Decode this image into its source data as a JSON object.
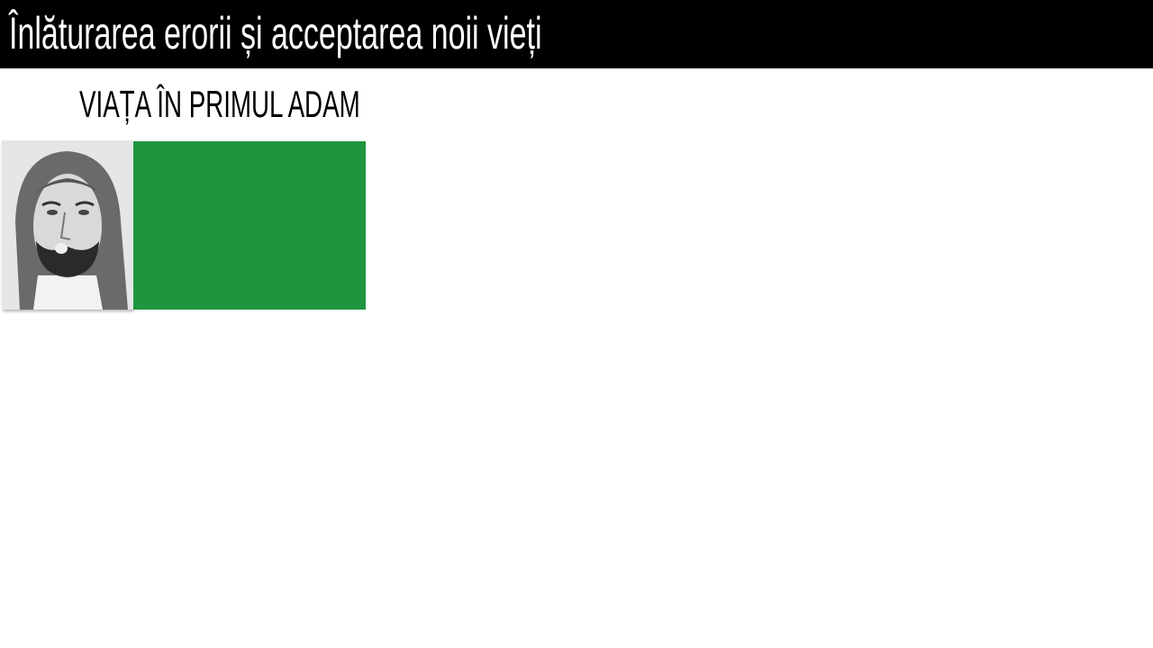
{
  "slide": {
    "title": "Înlăturarea erorii și acceptarea noii vieți",
    "subtitle": "VIAȚA ÎN PRIMUL ADAM",
    "portrait_icon": "watercolor-portrait",
    "box_color": "#1d963e"
  }
}
